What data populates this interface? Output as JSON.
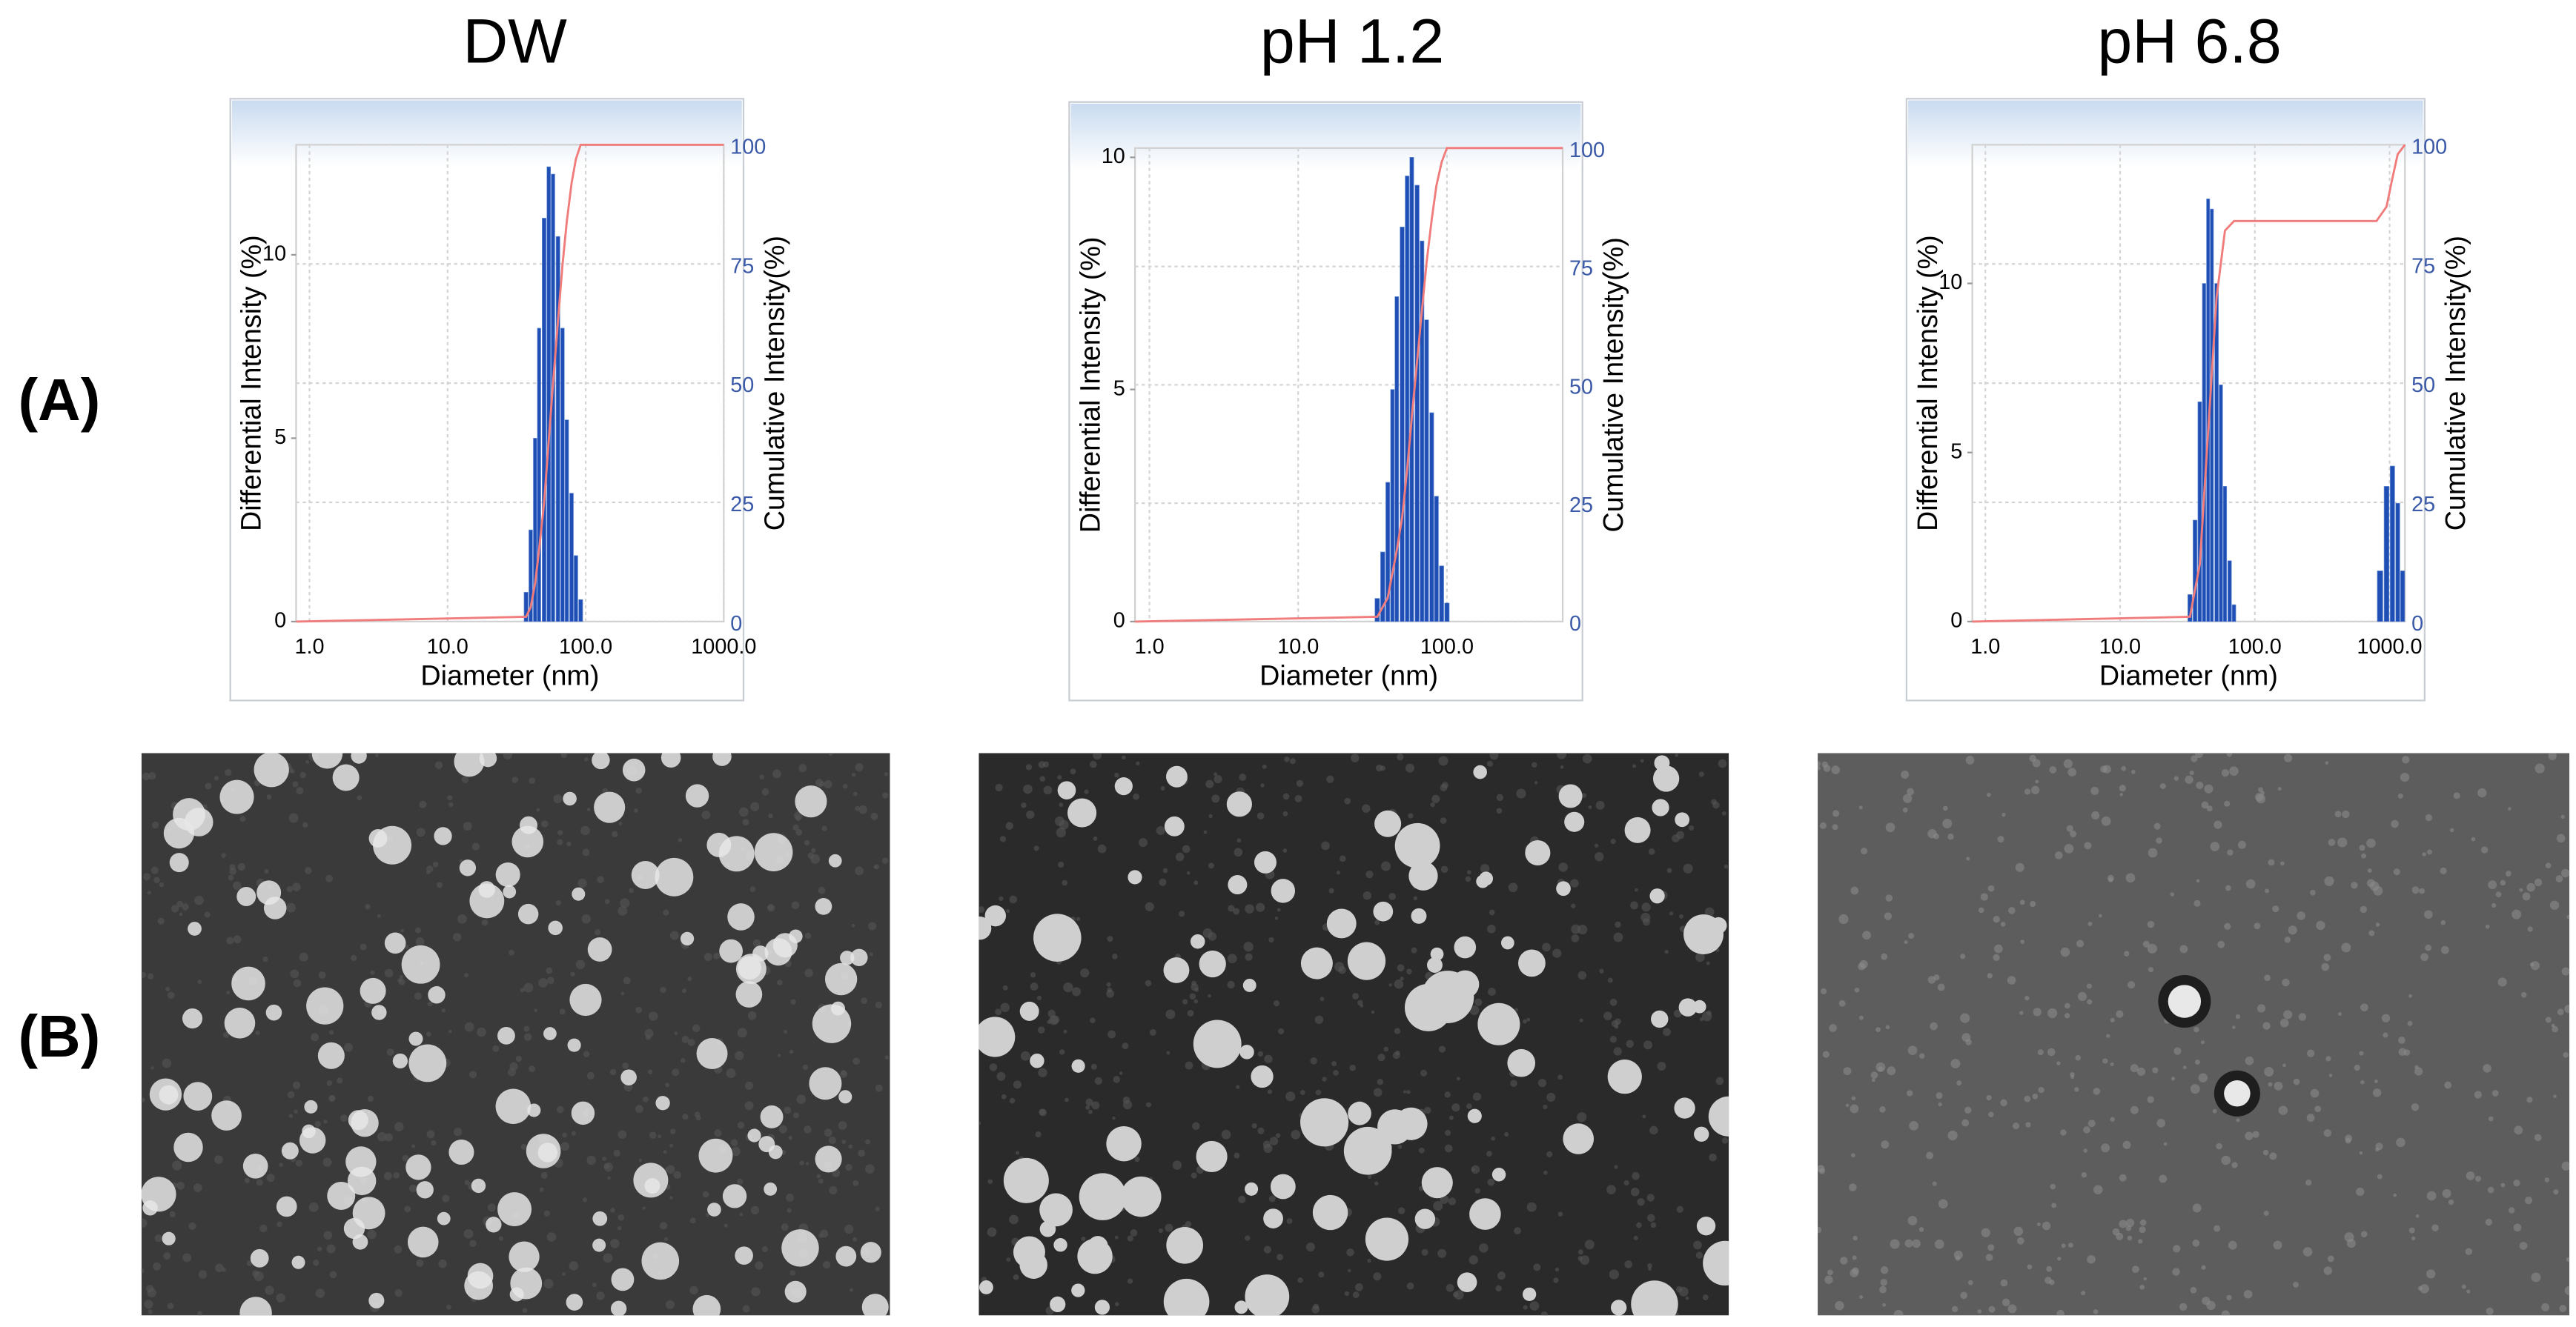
{
  "columns": [
    "DW",
    "pH 1.2",
    "pH 6.8"
  ],
  "rows": [
    "(A)",
    "(B)"
  ],
  "chart_data": [
    {
      "type": "histogram",
      "xscale": "log",
      "grid": true,
      "bar_color": "#1f4fb4",
      "line_color": "#f07c7c",
      "xlabel": "Diameter (nm)",
      "ylabel": "Differential Intensity (%)",
      "y2label": "Cumulative Intensity(%)",
      "xlim": [
        0.8,
        1000
      ],
      "xticks": [
        {
          "value": 1,
          "label": "1.0"
        },
        {
          "value": 10,
          "label": "10.0"
        },
        {
          "value": 100,
          "label": "100.0"
        },
        {
          "value": 1000,
          "label": "1000.0"
        }
      ],
      "ylim": [
        0,
        13
      ],
      "yticks": [
        0,
        5,
        10
      ],
      "y2lim": [
        0,
        100
      ],
      "y2ticks": [
        0,
        25,
        50,
        75,
        100
      ],
      "x": [
        37,
        40,
        43,
        46,
        50,
        54,
        58,
        63,
        68,
        73,
        79,
        85,
        92
      ],
      "values": [
        0.8,
        2.5,
        5,
        8,
        11,
        12.4,
        12.2,
        10.5,
        8,
        5.5,
        3.5,
        1.8,
        0.6
      ],
      "cumulative": {
        "x": [
          0.8,
          37,
          40,
          43,
          46,
          50,
          54,
          58,
          63,
          68,
          73,
          79,
          85,
          92,
          1000
        ],
        "values": [
          0,
          1,
          3,
          8,
          15,
          25,
          38,
          50,
          63,
          75,
          84,
          92,
          97,
          100,
          100
        ]
      }
    },
    {
      "type": "histogram",
      "xscale": "log",
      "grid": true,
      "bar_color": "#1f4fb4",
      "line_color": "#f07c7c",
      "xlabel": "Diameter (nm)",
      "ylabel": "Differential Intensity (%)",
      "y2label": "Cumulative Intensity(%)",
      "xlim": [
        0.8,
        600
      ],
      "xticks": [
        {
          "value": 1,
          "label": "1.0"
        },
        {
          "value": 10,
          "label": "10.0"
        },
        {
          "value": 100,
          "label": "100.0"
        }
      ],
      "ylim": [
        0,
        10.2
      ],
      "yticks": [
        0,
        5,
        10
      ],
      "y2lim": [
        0,
        100
      ],
      "y2ticks": [
        0,
        25,
        50,
        75,
        100
      ],
      "x": [
        34,
        37,
        40,
        43,
        46,
        50,
        54,
        58,
        63,
        68,
        73,
        79,
        85,
        92,
        100
      ],
      "values": [
        0.5,
        1.5,
        3,
        5,
        7,
        8.5,
        9.6,
        10,
        9.4,
        8.2,
        6.5,
        4.5,
        2.7,
        1.2,
        0.4
      ],
      "cumulative": {
        "x": [
          0.8,
          34,
          40,
          46,
          50,
          54,
          58,
          63,
          68,
          73,
          79,
          85,
          92,
          100,
          600
        ],
        "values": [
          0,
          1,
          5,
          15,
          22,
          32,
          43,
          55,
          66,
          76,
          85,
          92,
          97,
          100,
          100
        ]
      }
    },
    {
      "type": "histogram",
      "xscale": "log",
      "grid": true,
      "bar_color": "#1f4fb4",
      "line_color": "#f07c7c",
      "xlabel": "Diameter (nm)",
      "ylabel": "Differential Intensity (%)",
      "y2label": "Cumulative Intensity(%)",
      "xlim": [
        0.8,
        1300
      ],
      "xticks": [
        {
          "value": 1,
          "label": "1.0"
        },
        {
          "value": 10,
          "label": "10.0"
        },
        {
          "value": 100,
          "label": "100.0"
        },
        {
          "value": 1000,
          "label": "1000.0"
        }
      ],
      "ylim": [
        0,
        14.1
      ],
      "yticks": [
        0,
        5,
        10
      ],
      "y2lim": [
        0,
        100
      ],
      "y2ticks": [
        0,
        25,
        50,
        75,
        100
      ],
      "x": [
        33,
        36,
        39,
        42,
        45,
        48,
        52,
        56,
        60,
        65,
        70,
        850,
        950,
        1050,
        1150,
        1250
      ],
      "values": [
        0.8,
        3,
        6.5,
        10,
        12.5,
        12.2,
        10,
        7,
        4,
        1.8,
        0.5,
        1.5,
        4,
        4.6,
        3.5,
        1.5
      ],
      "cumulative": {
        "x": [
          0.8,
          33,
          39,
          45,
          52,
          60,
          70,
          800,
          950,
          1050,
          1150,
          1300
        ],
        "values": [
          0,
          1,
          12,
          40,
          68,
          82,
          84,
          84,
          87,
          93,
          98,
          100
        ]
      }
    }
  ]
}
